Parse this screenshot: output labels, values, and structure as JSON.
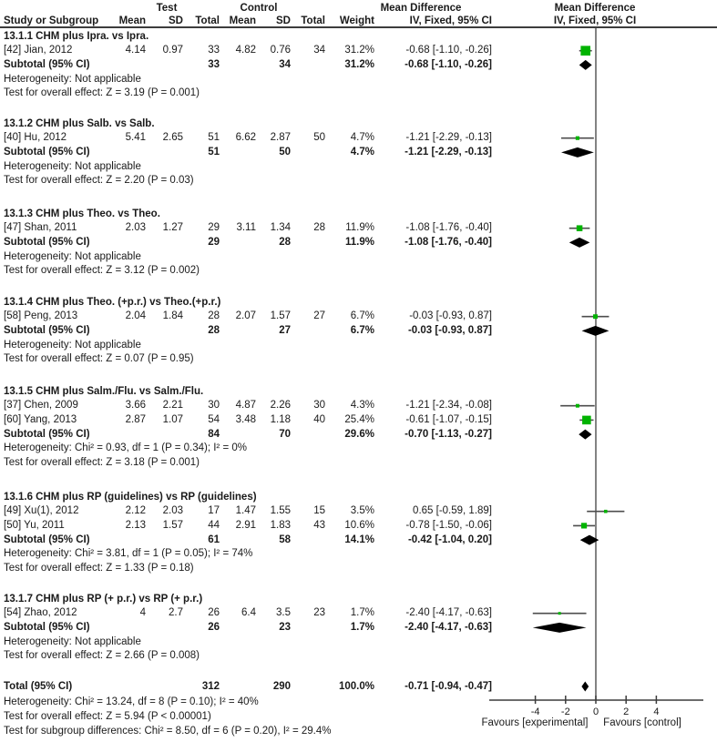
{
  "header": {
    "test_group": "Test",
    "control_group": "Control",
    "mean_difference": "Mean Difference",
    "iv_fixed": "IV, Fixed, 95% CI",
    "study": "Study or Subgroup",
    "mean": "Mean",
    "sd": "SD",
    "total": "Total",
    "weight": "Weight"
  },
  "axis": {
    "ticks": [
      -4,
      -2,
      0,
      2,
      4
    ],
    "favours_left": "Favours [experimental]",
    "favours_right": "Favours [control]"
  },
  "colors": {
    "marker_green": "#00b300",
    "diamond_black": "#000000",
    "ci_line": "#4d4d4d",
    "axis_line": "#3c3c3c",
    "text": "#1a1a1a"
  },
  "sections": [
    {
      "heading": "13.1.1 CHM plus Ipra. vs Ipra.",
      "studies": [
        {
          "label": "[42] Jian, 2012",
          "mean1": "4.14",
          "sd1": "0.97",
          "total1": "33",
          "mean2": "4.82",
          "sd2": "0.76",
          "total2": "34",
          "weight": "31.2%",
          "ci_text": "-0.68 [-1.10, -0.26]",
          "est": -0.68,
          "lo": -1.1,
          "hi": -0.26,
          "w": 31.2
        }
      ],
      "subtotal": {
        "label": "Subtotal (95% CI)",
        "total1": "33",
        "total2": "34",
        "weight": "31.2%",
        "ci_text": "-0.68 [-1.10, -0.26]",
        "est": -0.68,
        "lo": -1.1,
        "hi": -0.26
      },
      "heterogeneity": "Heterogeneity: Not applicable",
      "overall": "Test for overall effect: Z = 3.19 (P = 0.001)"
    },
    {
      "heading": "13.1.2 CHM plus Salb. vs Salb.",
      "studies": [
        {
          "label": "[40] Hu, 2012",
          "mean1": "5.41",
          "sd1": "2.65",
          "total1": "51",
          "mean2": "6.62",
          "sd2": "2.87",
          "total2": "50",
          "weight": "4.7%",
          "ci_text": "-1.21 [-2.29, -0.13]",
          "est": -1.21,
          "lo": -2.29,
          "hi": -0.13,
          "w": 4.7
        }
      ],
      "subtotal": {
        "label": "Subtotal (95% CI)",
        "total1": "51",
        "total2": "50",
        "weight": "4.7%",
        "ci_text": "-1.21 [-2.29, -0.13]",
        "est": -1.21,
        "lo": -2.29,
        "hi": -0.13
      },
      "heterogeneity": "Heterogeneity: Not applicable",
      "overall": "Test for overall effect: Z = 2.20 (P = 0.03)"
    },
    {
      "heading": "13.1.3 CHM plus Theo. vs Theo.",
      "studies": [
        {
          "label": "[47] Shan, 2011",
          "mean1": "2.03",
          "sd1": "1.27",
          "total1": "29",
          "mean2": "3.11",
          "sd2": "1.34",
          "total2": "28",
          "weight": "11.9%",
          "ci_text": "-1.08 [-1.76, -0.40]",
          "est": -1.08,
          "lo": -1.76,
          "hi": -0.4,
          "w": 11.9
        }
      ],
      "subtotal": {
        "label": "Subtotal (95% CI)",
        "total1": "29",
        "total2": "28",
        "weight": "11.9%",
        "ci_text": "-1.08 [-1.76, -0.40]",
        "est": -1.08,
        "lo": -1.76,
        "hi": -0.4
      },
      "heterogeneity": "Heterogeneity: Not applicable",
      "overall": "Test for overall effect: Z = 3.12 (P = 0.002)"
    },
    {
      "heading": "13.1.4 CHM plus Theo. (+p.r.) vs Theo.(+p.r.)",
      "studies": [
        {
          "label": "[58] Peng, 2013",
          "mean1": "2.04",
          "sd1": "1.84",
          "total1": "28",
          "mean2": "2.07",
          "sd2": "1.57",
          "total2": "27",
          "weight": "6.7%",
          "ci_text": "-0.03 [-0.93, 0.87]",
          "est": -0.03,
          "lo": -0.93,
          "hi": 0.87,
          "w": 6.7
        }
      ],
      "subtotal": {
        "label": "Subtotal (95% CI)",
        "total1": "28",
        "total2": "27",
        "weight": "6.7%",
        "ci_text": "-0.03 [-0.93, 0.87]",
        "est": -0.03,
        "lo": -0.93,
        "hi": 0.87
      },
      "heterogeneity": "Heterogeneity: Not applicable",
      "overall": "Test for overall effect: Z = 0.07 (P = 0.95)"
    },
    {
      "heading": "13.1.5 CHM plus Salm./Flu. vs Salm./Flu.",
      "studies": [
        {
          "label": "[37] Chen, 2009",
          "mean1": "3.66",
          "sd1": "2.21",
          "total1": "30",
          "mean2": "4.87",
          "sd2": "2.26",
          "total2": "30",
          "weight": "4.3%",
          "ci_text": "-1.21 [-2.34, -0.08]",
          "est": -1.21,
          "lo": -2.34,
          "hi": -0.08,
          "w": 4.3
        },
        {
          "label": "[60] Yang, 2013",
          "mean1": "2.87",
          "sd1": "1.07",
          "total1": "54",
          "mean2": "3.48",
          "sd2": "1.18",
          "total2": "40",
          "weight": "25.4%",
          "ci_text": "-0.61 [-1.07, -0.15]",
          "est": -0.61,
          "lo": -1.07,
          "hi": -0.15,
          "w": 25.4
        }
      ],
      "subtotal": {
        "label": "Subtotal (95% CI)",
        "total1": "84",
        "total2": "70",
        "weight": "29.6%",
        "ci_text": "-0.70 [-1.13, -0.27]",
        "est": -0.7,
        "lo": -1.13,
        "hi": -0.27
      },
      "heterogeneity": "Heterogeneity: Chi² = 0.93, df = 1 (P = 0.34); I² = 0%",
      "overall": "Test for overall effect: Z = 3.18 (P = 0.001)"
    },
    {
      "heading": "13.1.6 CHM plus RP (guidelines) vs RP (guidelines)",
      "studies": [
        {
          "label": "[49] Xu(1), 2012",
          "mean1": "2.12",
          "sd1": "2.03",
          "total1": "17",
          "mean2": "1.47",
          "sd2": "1.55",
          "total2": "15",
          "weight": "3.5%",
          "ci_text": "0.65 [-0.59, 1.89]",
          "est": 0.65,
          "lo": -0.59,
          "hi": 1.89,
          "w": 3.5
        },
        {
          "label": "[50] Yu, 2011",
          "mean1": "2.13",
          "sd1": "1.57",
          "total1": "44",
          "mean2": "2.91",
          "sd2": "1.83",
          "total2": "43",
          "weight": "10.6%",
          "ci_text": "-0.78 [-1.50, -0.06]",
          "est": -0.78,
          "lo": -1.5,
          "hi": -0.06,
          "w": 10.6
        }
      ],
      "subtotal": {
        "label": "Subtotal (95% CI)",
        "total1": "61",
        "total2": "58",
        "weight": "14.1%",
        "ci_text": "-0.42 [-1.04, 0.20]",
        "est": -0.42,
        "lo": -1.04,
        "hi": 0.2
      },
      "heterogeneity": "Heterogeneity: Chi² = 3.81, df = 1 (P = 0.05); I² = 74%",
      "overall": "Test for overall effect: Z = 1.33 (P = 0.18)"
    },
    {
      "heading": "13.1.7 CHM plus RP (+ p.r.) vs RP (+ p.r.)",
      "studies": [
        {
          "label": "[54] Zhao, 2012",
          "mean1": "4",
          "sd1": "2.7",
          "total1": "26",
          "mean2": "6.4",
          "sd2": "3.5",
          "total2": "23",
          "weight": "1.7%",
          "ci_text": "-2.40 [-4.17, -0.63]",
          "est": -2.4,
          "lo": -4.17,
          "hi": -0.63,
          "w": 1.7
        }
      ],
      "subtotal": {
        "label": "Subtotal (95% CI)",
        "total1": "26",
        "total2": "23",
        "weight": "1.7%",
        "ci_text": "-2.40 [-4.17, -0.63]",
        "est": -2.4,
        "lo": -4.17,
        "hi": -0.63
      },
      "heterogeneity": "Heterogeneity: Not applicable",
      "overall": "Test for overall effect: Z = 2.66 (P = 0.008)"
    }
  ],
  "total": {
    "label": "Total (95% CI)",
    "total1": "312",
    "total2": "290",
    "weight": "100.0%",
    "ci_text": "-0.71 [-0.94, -0.47]",
    "est": -0.71,
    "lo": -0.94,
    "hi": -0.47,
    "heterogeneity": "Heterogeneity: Chi² = 13.24, df = 8 (P = 0.10); I² = 40%",
    "overall": "Test for overall effect: Z = 5.94 (P < 0.00001)",
    "subgroup_diff": "Test for subgroup differences: Chi² = 8.50, df = 6 (P = 0.20), I² = 29.4%"
  },
  "chart_data": {
    "type": "scatter",
    "subtype": "forest-plot",
    "title": "Mean Difference, IV, Fixed, 95% CI",
    "xlabel": "Favours [experimental] | Favours [control]",
    "xlim": [
      -7,
      7
    ],
    "xticks": [
      -4,
      -2,
      0,
      2,
      4
    ],
    "grid": false,
    "points": [
      {
        "label": "[42] Jian, 2012",
        "est": -0.68,
        "ci": [
          -1.1,
          -0.26
        ],
        "weight_pct": 31.2
      },
      {
        "label": "[40] Hu, 2012",
        "est": -1.21,
        "ci": [
          -2.29,
          -0.13
        ],
        "weight_pct": 4.7
      },
      {
        "label": "[47] Shan, 2011",
        "est": -1.08,
        "ci": [
          -1.76,
          -0.4
        ],
        "weight_pct": 11.9
      },
      {
        "label": "[58] Peng, 2013",
        "est": -0.03,
        "ci": [
          -0.93,
          0.87
        ],
        "weight_pct": 6.7
      },
      {
        "label": "[37] Chen, 2009",
        "est": -1.21,
        "ci": [
          -2.34,
          -0.08
        ],
        "weight_pct": 4.3
      },
      {
        "label": "[60] Yang, 2013",
        "est": -0.61,
        "ci": [
          -1.07,
          -0.15
        ],
        "weight_pct": 25.4
      },
      {
        "label": "[49] Xu(1), 2012",
        "est": 0.65,
        "ci": [
          -0.59,
          1.89
        ],
        "weight_pct": 3.5
      },
      {
        "label": "[50] Yu, 2011",
        "est": -0.78,
        "ci": [
          -1.5,
          -0.06
        ],
        "weight_pct": 10.6
      },
      {
        "label": "[54] Zhao, 2012",
        "est": -2.4,
        "ci": [
          -4.17,
          -0.63
        ],
        "weight_pct": 1.7
      }
    ],
    "subtotals": [
      {
        "label": "13.1.1 Subtotal",
        "est": -0.68,
        "ci": [
          -1.1,
          -0.26
        ]
      },
      {
        "label": "13.1.2 Subtotal",
        "est": -1.21,
        "ci": [
          -2.29,
          -0.13
        ]
      },
      {
        "label": "13.1.3 Subtotal",
        "est": -1.08,
        "ci": [
          -1.76,
          -0.4
        ]
      },
      {
        "label": "13.1.4 Subtotal",
        "est": -0.03,
        "ci": [
          -0.93,
          0.87
        ]
      },
      {
        "label": "13.1.5 Subtotal",
        "est": -0.7,
        "ci": [
          -1.13,
          -0.27
        ]
      },
      {
        "label": "13.1.6 Subtotal",
        "est": -0.42,
        "ci": [
          -1.04,
          0.2
        ]
      },
      {
        "label": "13.1.7 Subtotal",
        "est": -2.4,
        "ci": [
          -4.17,
          -0.63
        ]
      }
    ],
    "total": {
      "label": "Total (95% CI)",
      "est": -0.71,
      "ci": [
        -0.94,
        -0.47
      ]
    }
  }
}
